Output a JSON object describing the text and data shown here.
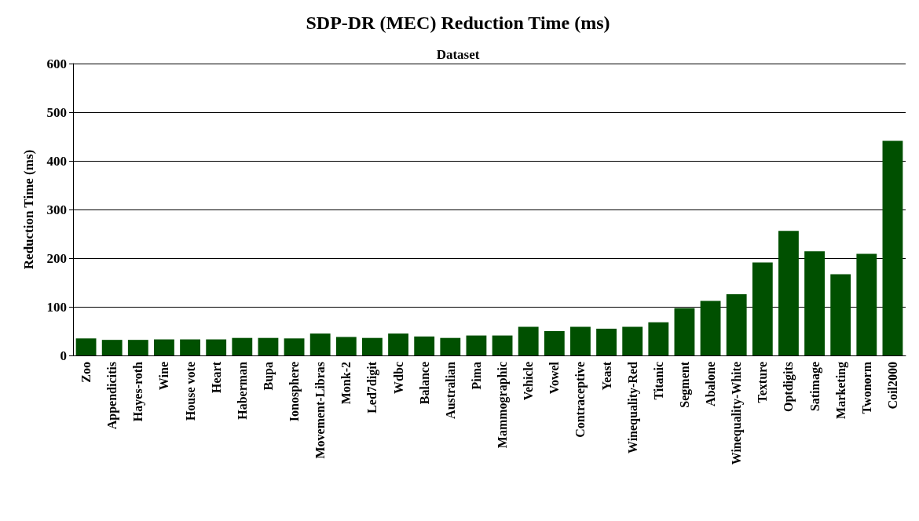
{
  "chart_data": {
    "type": "bar",
    "title": "SDP-DR (MEC) Reduction Time (ms)",
    "xlabel": "Dataset",
    "ylabel": "Reduction Time (ms)",
    "categories": [
      "Zoo",
      "Appendicitis",
      "Hayes-roth",
      "Wine",
      "House vote",
      "Heart",
      "Haberman",
      "Bupa",
      "Ionosphere",
      "Movement-Libras",
      "Monk-2",
      "Led7digit",
      "Wdbc",
      "Balance",
      "Australian",
      "Pima",
      "Mammographic",
      "Vehicle",
      "Vowel",
      "Contraceptive",
      "Yeast",
      "Winequality-Red",
      "Titanic",
      "Segment",
      "Abalone",
      "Winequality-White",
      "Texture",
      "Optdigits",
      "Satimage",
      "Marketing",
      "Twonorm",
      "Coil2000"
    ],
    "values": [
      35,
      32,
      32,
      33,
      33,
      33,
      36,
      36,
      35,
      45,
      38,
      36,
      45,
      39,
      36,
      41,
      41,
      59,
      50,
      59,
      55,
      59,
      68,
      97,
      112,
      126,
      191,
      256,
      214,
      167,
      209,
      441
    ],
    "color": "#005000",
    "ylim": [
      0,
      600
    ],
    "yticks": [
      0,
      100,
      200,
      300,
      400,
      500,
      600
    ],
    "grid": "y"
  }
}
